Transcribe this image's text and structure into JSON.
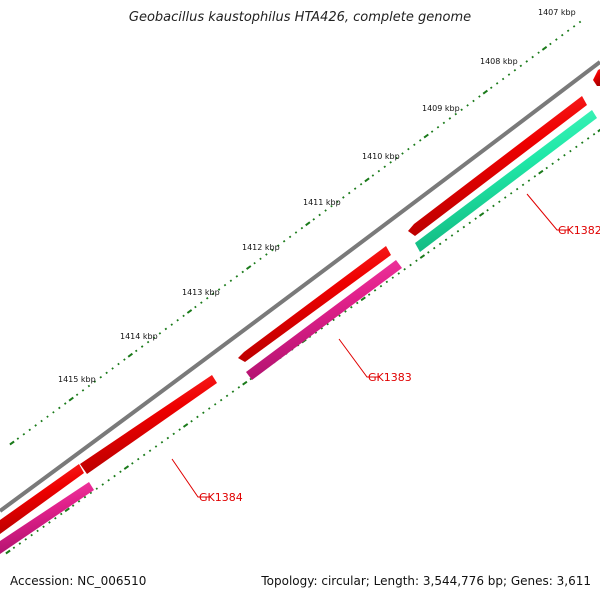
{
  "title": "Geobacillus kaustophilus HTA426, complete genome",
  "footer": {
    "accession": "Accession: NC_006510",
    "summary": "Topology: circular; Length: 3,544,776 bp; Genes: 3,611"
  },
  "colors": {
    "backbone": "#7a7a7a",
    "ticks": "#1a7a1a",
    "forward_gene": "#e00000",
    "reverse_pink": "#e0208a",
    "reverse_green": "#20e0a0",
    "label": "#e00000",
    "leader": "#e00000"
  },
  "ruler": {
    "unit": "kbp",
    "labels": [
      {
        "kbp": 1407,
        "text": "1407 kbp"
      },
      {
        "kbp": 1408,
        "text": "1408 kbp"
      },
      {
        "kbp": 1409,
        "text": "1409 kbp"
      },
      {
        "kbp": 1410,
        "text": "1410 kbp"
      },
      {
        "kbp": 1411,
        "text": "1411 kbp"
      },
      {
        "kbp": 1412,
        "text": "1412 kbp"
      },
      {
        "kbp": 1413,
        "text": "1413 kbp"
      },
      {
        "kbp": 1414,
        "text": "1414 kbp"
      },
      {
        "kbp": 1415,
        "text": "1415 kbp"
      }
    ]
  },
  "genes": [
    {
      "label": "GK1382",
      "strand": "reverse",
      "color_key": "reverse_green"
    },
    {
      "label": "GK1383",
      "strand": "reverse",
      "color_key": "reverse_pink"
    },
    {
      "label": "GK1384",
      "strand": "reverse",
      "color_key": "reverse_pink"
    }
  ]
}
